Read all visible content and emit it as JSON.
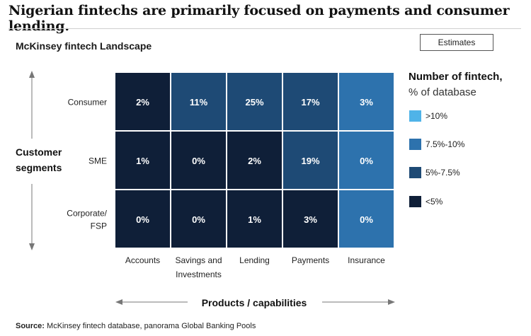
{
  "headline": "Nigerian fintechs are primarily focused on payments and consumer lending.",
  "subtitle": "McKinsey fintech Landscape",
  "estimates_label": "Estimates",
  "legend": {
    "title": "Number of fintech,",
    "subtitle": "% of database",
    "items": [
      {
        "label": ">10%",
        "color": "#4fb3e8"
      },
      {
        "label": "7.5%-10%",
        "color": "#2d72ad"
      },
      {
        "label": "5%-7.5%",
        "color": "#1e4a75"
      },
      {
        "label": "<5%",
        "color": "#0f1f38"
      }
    ]
  },
  "source": {
    "label": "Source:",
    "text": " McKinsey fintech database, panorama Global Banking Pools"
  },
  "chart_data": {
    "type": "heatmap",
    "rows": [
      "Consumer",
      "SME",
      "Corporate/ FSP"
    ],
    "columns": [
      "Accounts",
      "Savings and Investments",
      "Lending",
      "Payments",
      "Insurance"
    ],
    "values": [
      [
        "2%",
        "11%",
        "25%",
        "17%",
        "3%"
      ],
      [
        "1%",
        "0%",
        "2%",
        "19%",
        "0%"
      ],
      [
        "0%",
        "0%",
        "1%",
        "3%",
        "0%"
      ]
    ],
    "cell_colors": [
      [
        "#0f1f38",
        "#1e4a75",
        "#1e4a75",
        "#1e4a75",
        "#2d72ad"
      ],
      [
        "#0f1f38",
        "#0f1f38",
        "#0f1f38",
        "#1e4a75",
        "#2d72ad"
      ],
      [
        "#0f1f38",
        "#0f1f38",
        "#0f1f38",
        "#0f1f38",
        "#2d72ad"
      ]
    ],
    "ylabel": "Customer segments",
    "xlabel": "Products / capabilities"
  }
}
